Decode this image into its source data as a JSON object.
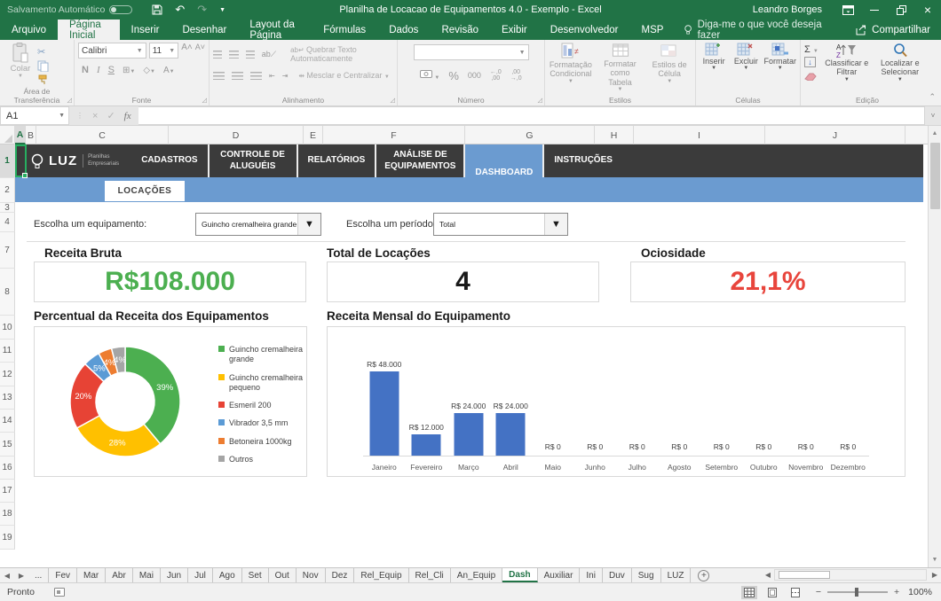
{
  "titlebar": {
    "autosave_label": "Salvamento Automático",
    "title": "Planilha de Locacao de Equipamentos 4.0 - Exemplo - Excel",
    "user": "Leandro Borges"
  },
  "menu": {
    "tabs": [
      "Arquivo",
      "Página Inicial",
      "Inserir",
      "Desenhar",
      "Layout da Página",
      "Fórmulas",
      "Dados",
      "Revisão",
      "Exibir",
      "Desenvolvedor",
      "MSP"
    ],
    "active_tab": "Página Inicial",
    "tell_me": "Diga-me o que você deseja fazer",
    "share": "Compartilhar"
  },
  "ribbon": {
    "clipboard": {
      "label": "Área de Transferência",
      "paste": "Colar"
    },
    "font": {
      "label": "Fonte",
      "font_name": "Calibri",
      "font_size": "11",
      "bold": "N",
      "italic": "I",
      "underline": "S"
    },
    "alignment": {
      "label": "Alinhamento",
      "wrap": "Quebrar Texto Automaticamente",
      "merge": "Mesclar e Centralizar"
    },
    "number": {
      "label": "Número",
      "format_value": "",
      "percent": "%",
      "thousands": "000",
      "inc_top": "←,0",
      "inc_bottom": ",00",
      "dec_top": ",00",
      "dec_bottom": "→,0"
    },
    "styles": {
      "label": "Estilos",
      "conditional": "Formatação Condicional",
      "format_table": "Formatar como Tabela",
      "cell_styles": "Estilos de Célula"
    },
    "cells": {
      "label": "Células",
      "insert": "Inserir",
      "delete": "Excluir",
      "format": "Formatar"
    },
    "editing": {
      "label": "Edição",
      "sort": "Classificar e Filtrar",
      "find": "Localizar e Selecionar"
    }
  },
  "formula_bar": {
    "name_box": "A1",
    "fx": "fx"
  },
  "grid": {
    "columns": [
      "A",
      "B",
      "C",
      "D",
      "E",
      "F",
      "G",
      "H",
      "I",
      "J"
    ],
    "rows": [
      "1",
      "2",
      "3",
      "4",
      "7",
      "8",
      "10",
      "11",
      "12",
      "13",
      "14",
      "15",
      "16",
      "17",
      "18",
      "19"
    ]
  },
  "dashboard": {
    "logo": {
      "brand": "LUZ",
      "sub_line1": "Planilhas",
      "sub_line2": "Empresariais"
    },
    "nav": [
      "CADASTROS",
      "CONTROLE DE ALUGUÉIS",
      "RELATÓRIOS",
      "ANÁLISE DE EQUIPAMENTOS",
      "DASHBOARD",
      "INSTRUÇÕES"
    ],
    "active_nav": "DASHBOARD",
    "subtab": "LOCAÇÕES",
    "filters": [
      {
        "label": "Escolha um equipamento:",
        "value": "Guincho cremalheira grande"
      },
      {
        "label": "Escolha um período:",
        "value": "Total"
      }
    ],
    "kpis": [
      {
        "title": "Receita Bruta",
        "value": "R$108.000",
        "color": "#4caf50"
      },
      {
        "title": "Total de Locações",
        "value": "4",
        "color": "#1a1a1a"
      },
      {
        "title": "Ociosidade",
        "value": "21,1%",
        "color": "#e8453c"
      }
    ]
  },
  "chart_data": [
    {
      "type": "pie",
      "title": "Percentual da Receita dos Equipamentos",
      "labels": [
        "Guincho cremalheira grande",
        "Guincho cremalheira pequeno",
        "Esmeril 200",
        "Vibrador 3,5 mm",
        "Betoneira 1000kg",
        "Outros"
      ],
      "values": [
        39,
        28,
        20,
        5,
        4,
        4
      ],
      "value_labels": [
        "39%",
        "28%",
        "20%",
        "5%",
        "4%",
        "4%"
      ],
      "colors": [
        "#4caf50",
        "#ffc000",
        "#e74335",
        "#5b9bd5",
        "#ed7d31",
        "#a5a5a5"
      ],
      "donut": true,
      "legend_position": "right"
    },
    {
      "type": "bar",
      "title": "Receita Mensal do Equipamento",
      "categories": [
        "Janeiro",
        "Fevereiro",
        "Março",
        "Abril",
        "Maio",
        "Junho",
        "Julho",
        "Agosto",
        "Setembro",
        "Outubro",
        "Novembro",
        "Dezembro"
      ],
      "values": [
        48000,
        12000,
        24000,
        24000,
        0,
        0,
        0,
        0,
        0,
        0,
        0,
        0
      ],
      "data_labels": [
        "R$ 48.000",
        "R$ 12.000",
        "R$ 24.000",
        "R$ 24.000",
        "R$ 0",
        "R$ 0",
        "R$ 0",
        "R$ 0",
        "R$ 0",
        "R$ 0",
        "R$ 0",
        "R$ 0"
      ],
      "bar_color": "#4472c4",
      "ylim": [
        0,
        48000
      ],
      "grid": false,
      "legend_position": "none"
    }
  ],
  "sheet_bar": {
    "tabs": [
      "...",
      "Fev",
      "Mar",
      "Abr",
      "Mai",
      "Jun",
      "Jul",
      "Ago",
      "Set",
      "Out",
      "Nov",
      "Dez",
      "Rel_Equip",
      "Rel_Cli",
      "An_Equip",
      "Dash",
      "Auxiliar",
      "Ini",
      "Duv",
      "Sug",
      "LUZ"
    ],
    "active": "Dash",
    "add": "+"
  },
  "status_bar": {
    "ready": "Pronto",
    "zoom": "100%"
  }
}
